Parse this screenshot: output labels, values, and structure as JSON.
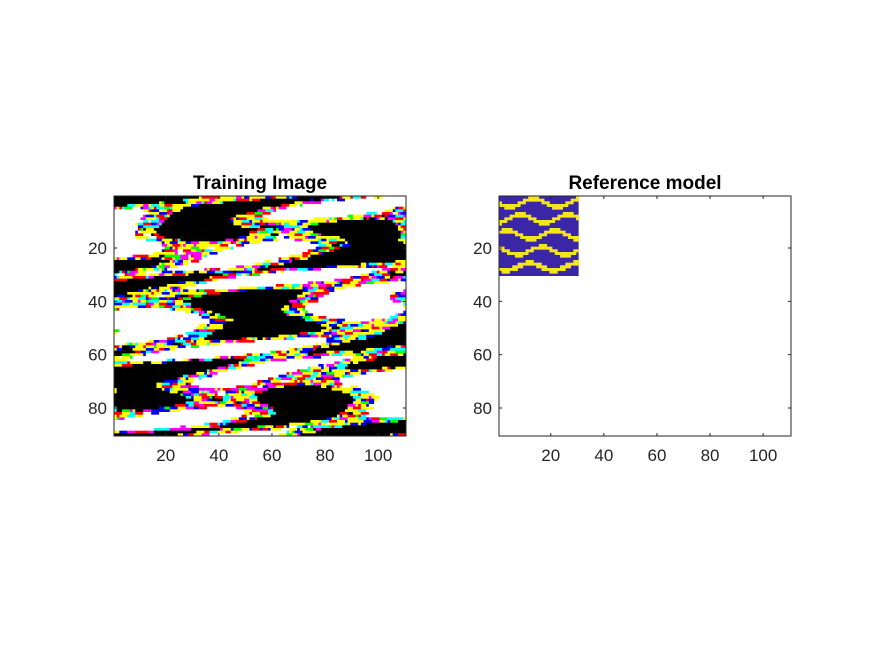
{
  "chart_data": [
    {
      "type": "heatmap",
      "title": "Training Image",
      "xlim": [
        0.5,
        110.5
      ],
      "ylim": [
        0.5,
        90.5
      ],
      "y_reversed": true,
      "xticks": [
        "20",
        "40",
        "60",
        "80",
        "100"
      ],
      "yticks": [
        "20",
        "40",
        "60",
        "80"
      ],
      "grid_cols": 110,
      "grid_rows": 90,
      "palette": [
        "#000000",
        "#ffffff",
        "#ffff00",
        "#ff0000",
        "#0000ff",
        "#00ffff",
        "#ff00ff",
        "#00ff00"
      ]
    },
    {
      "type": "heatmap",
      "title": "Reference model",
      "xlim": [
        0.5,
        110.5
      ],
      "ylim": [
        0.5,
        90.5
      ],
      "y_reversed": true,
      "xticks": [
        "20",
        "40",
        "60",
        "80",
        "100"
      ],
      "yticks": [
        "20",
        "40",
        "60",
        "80"
      ],
      "data_extent": {
        "cols": 30,
        "rows": 30
      },
      "palette": [
        "#3c26a8",
        "#f4e61a"
      ]
    }
  ]
}
